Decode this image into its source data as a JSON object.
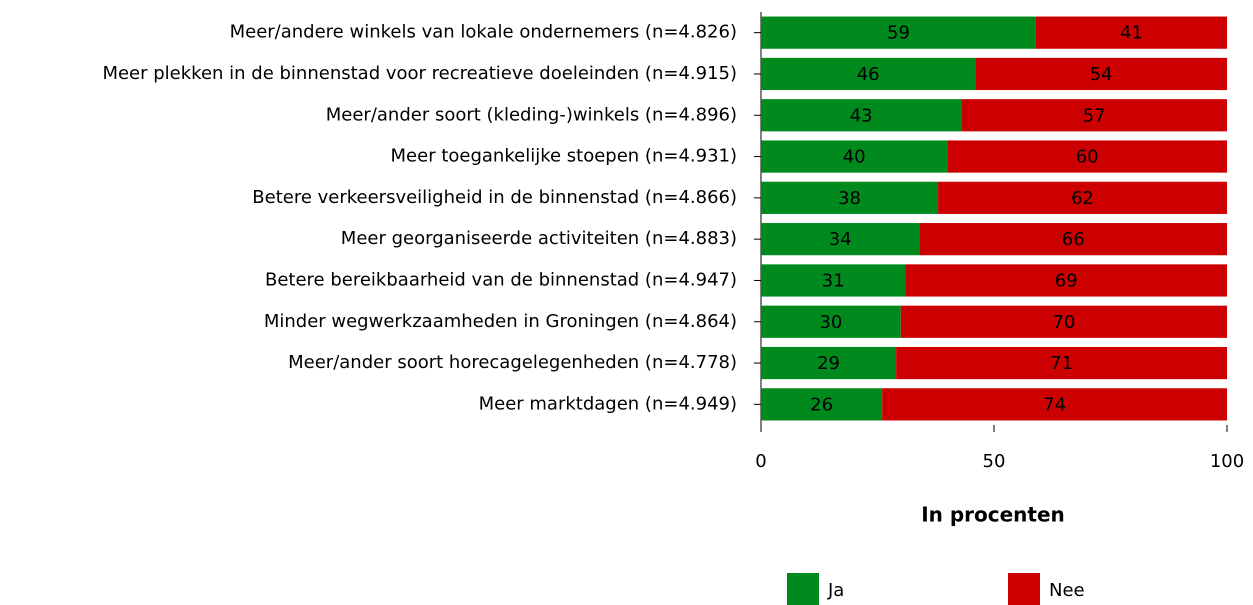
{
  "chart_data": {
    "type": "bar",
    "orientation": "horizontal",
    "stacked": true,
    "categories": [
      "Meer/andere winkels van lokale ondernemers (n=4.826)",
      "Meer plekken in de binnenstad voor recreatieve doeleinden (n=4.915)",
      "Meer/ander soort (kleding-)winkels (n=4.896)",
      "Meer toegankelijke stoepen (n=4.931)",
      "Betere verkeersveiligheid in de binnenstad (n=4.866)",
      "Meer georganiseerde activiteiten (n=4.883)",
      "Betere bereikbaarheid van de binnenstad (n=4.947)",
      "Minder wegwerkzaamheden in Groningen (n=4.864)",
      "Meer/ander soort horecagelegenheden (n=4.778)",
      "Meer marktdagen (n=4.949)"
    ],
    "series": [
      {
        "name": "Ja",
        "color": "#008a1e",
        "values": [
          59,
          46,
          43,
          40,
          38,
          34,
          31,
          30,
          29,
          26
        ]
      },
      {
        "name": "Nee",
        "color": "#cc0000",
        "values": [
          41,
          54,
          57,
          60,
          62,
          66,
          69,
          70,
          71,
          74
        ]
      }
    ],
    "xlim": [
      0,
      100
    ],
    "xticks": [
      0,
      50,
      100
    ],
    "xlabel": "In procenten",
    "legend": "bottom"
  }
}
